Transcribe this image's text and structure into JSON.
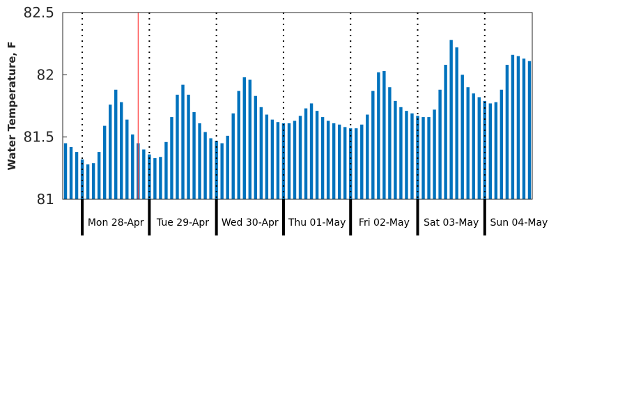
{
  "chart_data": {
    "type": "bar",
    "ylabel": "Water Temperature, F",
    "xlabel": "",
    "title": "",
    "ylim": [
      81,
      82.5
    ],
    "yticks": [
      81,
      81.5,
      82,
      82.5
    ],
    "ytick_labels": [
      "81",
      "81.5",
      "82",
      "82.5"
    ],
    "bar_color": "#0072bd",
    "marker_color": "#ff3b3b",
    "x_start_hours": -7,
    "x_end_hours": 161,
    "step_hours": 2,
    "current_time_hours": 20,
    "days": [
      {
        "label": "Mon 28-Apr",
        "start_hours": 0
      },
      {
        "label": "Tue 29-Apr",
        "start_hours": 24
      },
      {
        "label": "Wed 30-Apr",
        "start_hours": 48
      },
      {
        "label": "Thu 01-May",
        "start_hours": 72
      },
      {
        "label": "Fri 02-May",
        "start_hours": 96
      },
      {
        "label": "Sat 03-May",
        "start_hours": 120
      },
      {
        "label": "Sun 04-May",
        "start_hours": 144
      }
    ],
    "x": [
      -6,
      -4,
      -2,
      0,
      2,
      4,
      6,
      8,
      10,
      12,
      14,
      16,
      18,
      20,
      22,
      24,
      26,
      28,
      30,
      32,
      34,
      36,
      38,
      40,
      42,
      44,
      46,
      48,
      50,
      52,
      54,
      56,
      58,
      60,
      62,
      64,
      66,
      68,
      70,
      72,
      74,
      76,
      78,
      80,
      82,
      84,
      86,
      88,
      90,
      92,
      94,
      96,
      98,
      100,
      102,
      104,
      106,
      108,
      110,
      112,
      114,
      116,
      118,
      120,
      122,
      124,
      126,
      128,
      130,
      132,
      134,
      136,
      138,
      140,
      142,
      144,
      146,
      148,
      150,
      152,
      154,
      156,
      158,
      160
    ],
    "values": [
      81.45,
      81.42,
      81.38,
      81.32,
      81.28,
      81.29,
      81.38,
      81.59,
      81.76,
      81.88,
      81.78,
      81.64,
      81.52,
      81.45,
      81.4,
      81.36,
      81.33,
      81.34,
      81.46,
      81.66,
      81.84,
      81.92,
      81.84,
      81.7,
      81.61,
      81.54,
      81.49,
      81.47,
      81.45,
      81.51,
      81.69,
      81.87,
      81.98,
      81.96,
      81.83,
      81.74,
      81.68,
      81.64,
      81.62,
      81.61,
      81.61,
      81.63,
      81.67,
      81.73,
      81.77,
      81.71,
      81.66,
      81.63,
      81.61,
      81.6,
      81.58,
      81.57,
      81.57,
      81.6,
      81.68,
      81.87,
      82.02,
      82.03,
      81.9,
      81.79,
      81.74,
      81.71,
      81.69,
      81.67,
      81.66,
      81.66,
      81.72,
      81.88,
      82.08,
      82.28,
      82.22,
      82.0,
      81.9,
      81.85,
      81.82,
      81.79,
      81.77,
      81.78,
      81.88,
      82.08,
      82.16,
      82.15,
      82.13,
      82.11
    ]
  }
}
